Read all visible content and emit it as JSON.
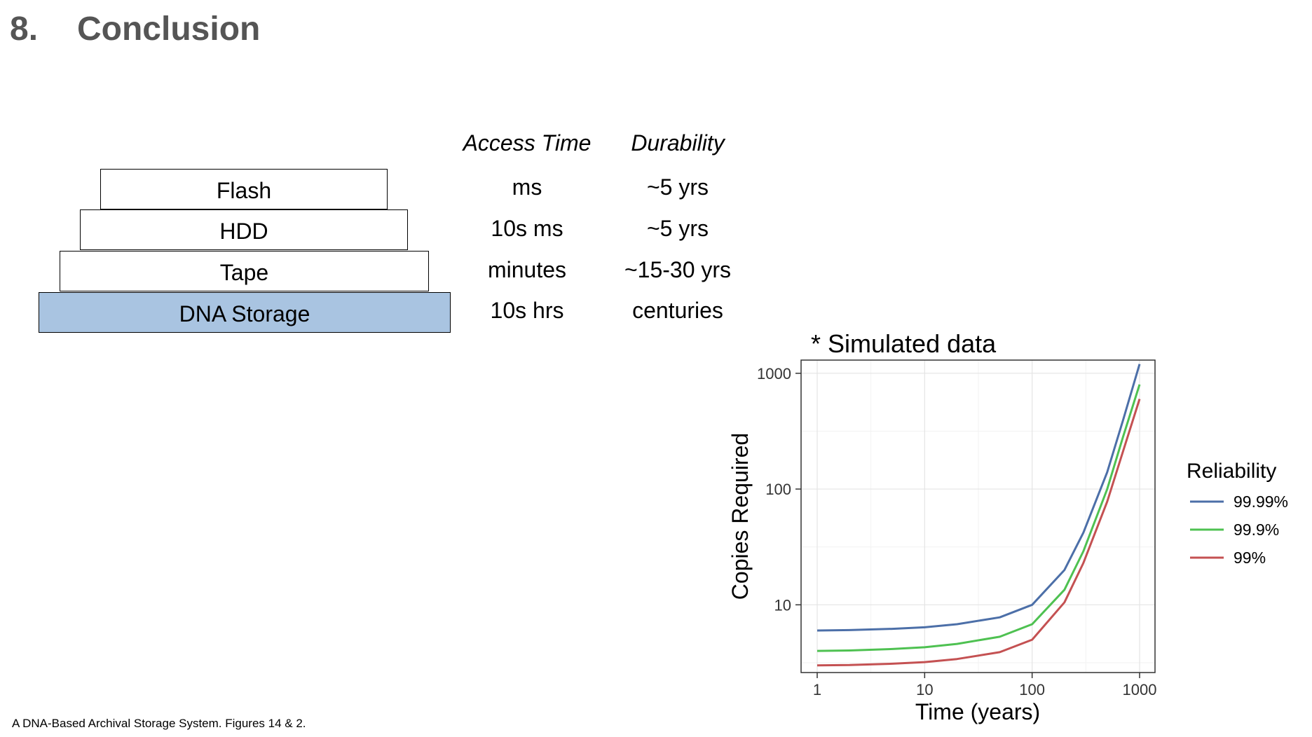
{
  "slide": {
    "number": "8.",
    "title": "Conclusion",
    "footnote": "A DNA-Based Archival Storage System. Figures 14 & 2."
  },
  "hierarchy": {
    "layers": [
      "Flash",
      "HDD",
      "Tape",
      "DNA Storage"
    ],
    "highlight_color": "#a9c4e1"
  },
  "table": {
    "headers": [
      "Access Time",
      "Durability"
    ],
    "rows": [
      [
        "ms",
        "~5 yrs"
      ],
      [
        "10s ms",
        "~5 yrs"
      ],
      [
        "minutes",
        "~15-30 yrs"
      ],
      [
        "10s hrs",
        "centuries"
      ]
    ]
  },
  "chart_data": {
    "type": "line",
    "title": "* Simulated data",
    "xlabel": "Time (years)",
    "ylabel": "Copies Required",
    "x_scale": "log",
    "y_scale": "log",
    "xlim": [
      1,
      1000
    ],
    "ylim": [
      2.6,
      1300
    ],
    "x_ticks": [
      "1",
      "10",
      "100",
      "1000"
    ],
    "y_ticks": [
      "10",
      "100",
      "1000"
    ],
    "grid": true,
    "legend_title": "Reliability",
    "legend_position": "right",
    "x": [
      1,
      2,
      5,
      10,
      20,
      50,
      100,
      200,
      300,
      500,
      700,
      1000
    ],
    "series": [
      {
        "name": "99.99%",
        "color": "#4c6fa8",
        "values": [
          6.0,
          6.05,
          6.2,
          6.4,
          6.8,
          7.8,
          10,
          20,
          42,
          140,
          390,
          1200
        ]
      },
      {
        "name": "99.9%",
        "color": "#4ec151",
        "values": [
          4.0,
          4.03,
          4.15,
          4.3,
          4.6,
          5.3,
          6.8,
          13.5,
          29,
          100,
          280,
          800
        ]
      },
      {
        "name": "99%",
        "color": "#c45152",
        "values": [
          3.0,
          3.02,
          3.1,
          3.2,
          3.4,
          3.9,
          5.0,
          10.5,
          23,
          78,
          210,
          600
        ]
      }
    ]
  }
}
